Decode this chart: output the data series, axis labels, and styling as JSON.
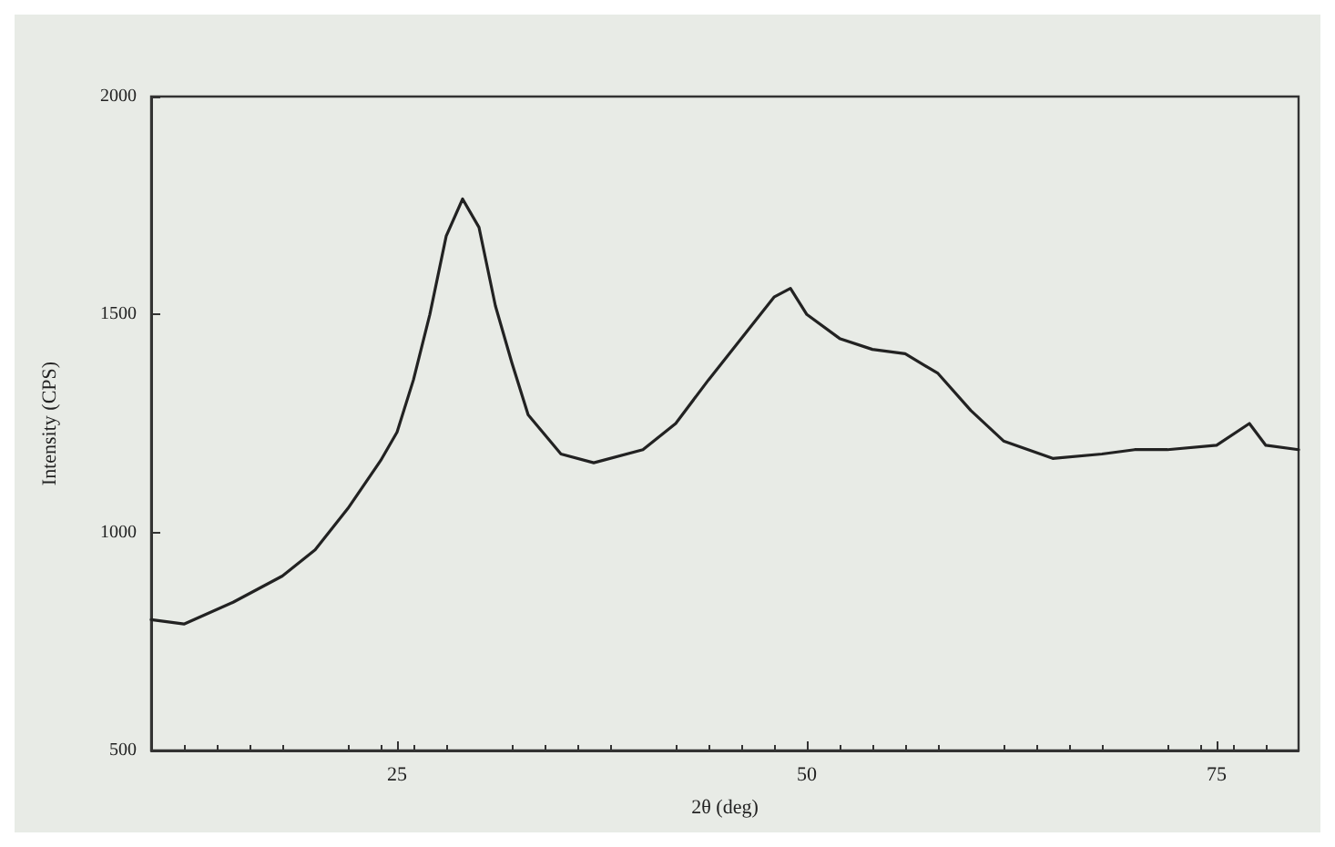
{
  "chart_data": {
    "type": "line",
    "xlabel": "2θ (deg)",
    "ylabel": "Intensity (CPS)",
    "xlim": [
      10,
      80
    ],
    "xticks": [
      25,
      50,
      75
    ],
    "ylim": [
      500,
      2000
    ],
    "yticks": [
      500,
      1000,
      1500,
      2000
    ],
    "grid": false,
    "marker": "none",
    "line_style": "solid",
    "series": [
      {
        "color": "#222222",
        "x": [
          10,
          12,
          15,
          18,
          20,
          22,
          24,
          25,
          26,
          27,
          28,
          29,
          30,
          31,
          32,
          33,
          35,
          37,
          40,
          42,
          44,
          46,
          48,
          49,
          50,
          52,
          54,
          56,
          58,
          60,
          62,
          65,
          68,
          70,
          72,
          75,
          77,
          78,
          80
        ],
        "values": [
          800,
          790,
          840,
          900,
          960,
          1055,
          1165,
          1230,
          1350,
          1500,
          1680,
          1765,
          1700,
          1520,
          1390,
          1270,
          1180,
          1160,
          1190,
          1250,
          1350,
          1445,
          1540,
          1560,
          1500,
          1445,
          1420,
          1410,
          1365,
          1280,
          1210,
          1170,
          1180,
          1190,
          1190,
          1200,
          1250,
          1200,
          1190
        ]
      }
    ]
  }
}
